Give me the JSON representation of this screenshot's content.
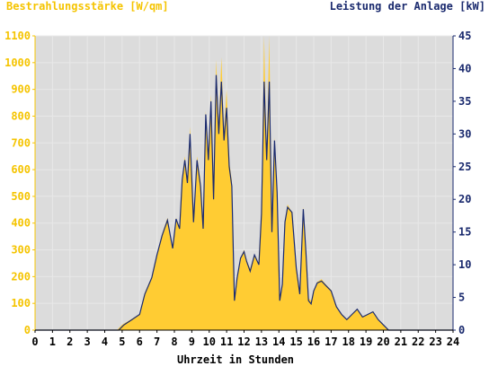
{
  "chart_data": {
    "type": "area",
    "left_axis_label": "Bestrahlungsstärke [W/qm]",
    "right_axis_label": "Leistung der Anlage [kW]",
    "xlabel": "Uhrzeit in Stunden",
    "xlim": [
      0,
      24
    ],
    "ylim_left": [
      0,
      1100
    ],
    "ylim_right": [
      0,
      45
    ],
    "x_ticks": [
      "0",
      "1",
      "2",
      "3",
      "4",
      "5",
      "6",
      "7",
      "8",
      "9",
      "10",
      "11",
      "12",
      "13",
      "14",
      "15",
      "16",
      "17",
      "18",
      "19",
      "20",
      "21",
      "22",
      "23",
      "24"
    ],
    "y_left_ticks": [
      "0",
      "100",
      "200",
      "300",
      "400",
      "500",
      "600",
      "700",
      "800",
      "900",
      "1000",
      "1100"
    ],
    "y_right_ticks": [
      "0",
      "5",
      "10",
      "15",
      "20",
      "25",
      "30",
      "35",
      "40",
      "45"
    ],
    "grid": true,
    "colors": {
      "irradiance": "#ffcc33",
      "power": "#1a2a6e",
      "plot_bg": "#dcdcdc",
      "left_axis": "#f5c400",
      "right_axis": "#1a2a6e"
    },
    "series": [
      {
        "name": "Bestrahlungsstärke [W/qm]",
        "axis": "left",
        "x": [
          0,
          4.7,
          5.0,
          5.5,
          6.0,
          6.3,
          6.7,
          7.0,
          7.3,
          7.6,
          7.9,
          8.1,
          8.3,
          8.45,
          8.6,
          8.75,
          8.9,
          9.1,
          9.3,
          9.5,
          9.65,
          9.8,
          9.95,
          10.1,
          10.25,
          10.4,
          10.55,
          10.7,
          10.85,
          11.0,
          11.15,
          11.3,
          11.45,
          11.6,
          11.8,
          12.0,
          12.15,
          12.35,
          12.6,
          12.85,
          13.0,
          13.15,
          13.3,
          13.45,
          13.6,
          13.75,
          13.9,
          14.05,
          14.2,
          14.35,
          14.5,
          14.75,
          15.0,
          15.2,
          15.4,
          15.55,
          15.7,
          15.85,
          16.0,
          16.2,
          16.45,
          16.7,
          17.0,
          17.3,
          17.6,
          17.9,
          18.2,
          18.5,
          18.8,
          19.1,
          19.4,
          19.7,
          20.0,
          20.3,
          24
        ],
        "values": [
          0,
          0,
          20,
          40,
          60,
          140,
          200,
          280,
          360,
          420,
          300,
          420,
          380,
          560,
          650,
          560,
          760,
          400,
          650,
          560,
          380,
          820,
          640,
          880,
          500,
          1010,
          760,
          1020,
          740,
          900,
          630,
          560,
          120,
          200,
          270,
          300,
          260,
          230,
          280,
          240,
          440,
          1100,
          640,
          1100,
          360,
          720,
          520,
          110,
          170,
          400,
          470,
          440,
          240,
          140,
          460,
          300,
          120,
          110,
          140,
          180,
          190,
          170,
          150,
          90,
          60,
          40,
          60,
          80,
          50,
          60,
          70,
          40,
          20,
          0,
          0
        ]
      },
      {
        "name": "Leistung der Anlage [kW]",
        "axis": "right",
        "x": [
          0,
          4.8,
          5.1,
          5.5,
          6.0,
          6.3,
          6.7,
          7.0,
          7.3,
          7.6,
          7.9,
          8.1,
          8.3,
          8.45,
          8.6,
          8.75,
          8.9,
          9.1,
          9.3,
          9.5,
          9.65,
          9.8,
          9.95,
          10.1,
          10.25,
          10.4,
          10.55,
          10.7,
          10.85,
          11.0,
          11.15,
          11.3,
          11.45,
          11.6,
          11.8,
          12.0,
          12.15,
          12.35,
          12.6,
          12.85,
          13.0,
          13.15,
          13.3,
          13.45,
          13.6,
          13.75,
          13.9,
          14.05,
          14.2,
          14.35,
          14.5,
          14.75,
          15.0,
          15.2,
          15.4,
          15.55,
          15.7,
          15.85,
          16.0,
          16.2,
          16.45,
          16.7,
          17.0,
          17.3,
          17.6,
          17.9,
          18.2,
          18.5,
          18.8,
          19.1,
          19.4,
          19.7,
          20.0,
          20.3,
          24
        ],
        "values": [
          0,
          0,
          0.8,
          1.5,
          2.4,
          5.5,
          8,
          11.5,
          14.5,
          16.8,
          12.5,
          17,
          15.5,
          23,
          26,
          22.5,
          30,
          16.5,
          26,
          22,
          15.5,
          33,
          26,
          35,
          20,
          39,
          30,
          38,
          29,
          34,
          25,
          22,
          4.5,
          8,
          11,
          12,
          10.5,
          9,
          11.5,
          10,
          17.8,
          38,
          26,
          38,
          15,
          29,
          21,
          4.5,
          7,
          16.5,
          18.8,
          18,
          9.5,
          5.5,
          18.5,
          12,
          4.5,
          4,
          6,
          7.2,
          7.5,
          6.8,
          6,
          3.6,
          2.4,
          1.6,
          2.4,
          3.2,
          2,
          2.4,
          2.8,
          1.6,
          0.8,
          0,
          0
        ]
      }
    ]
  }
}
